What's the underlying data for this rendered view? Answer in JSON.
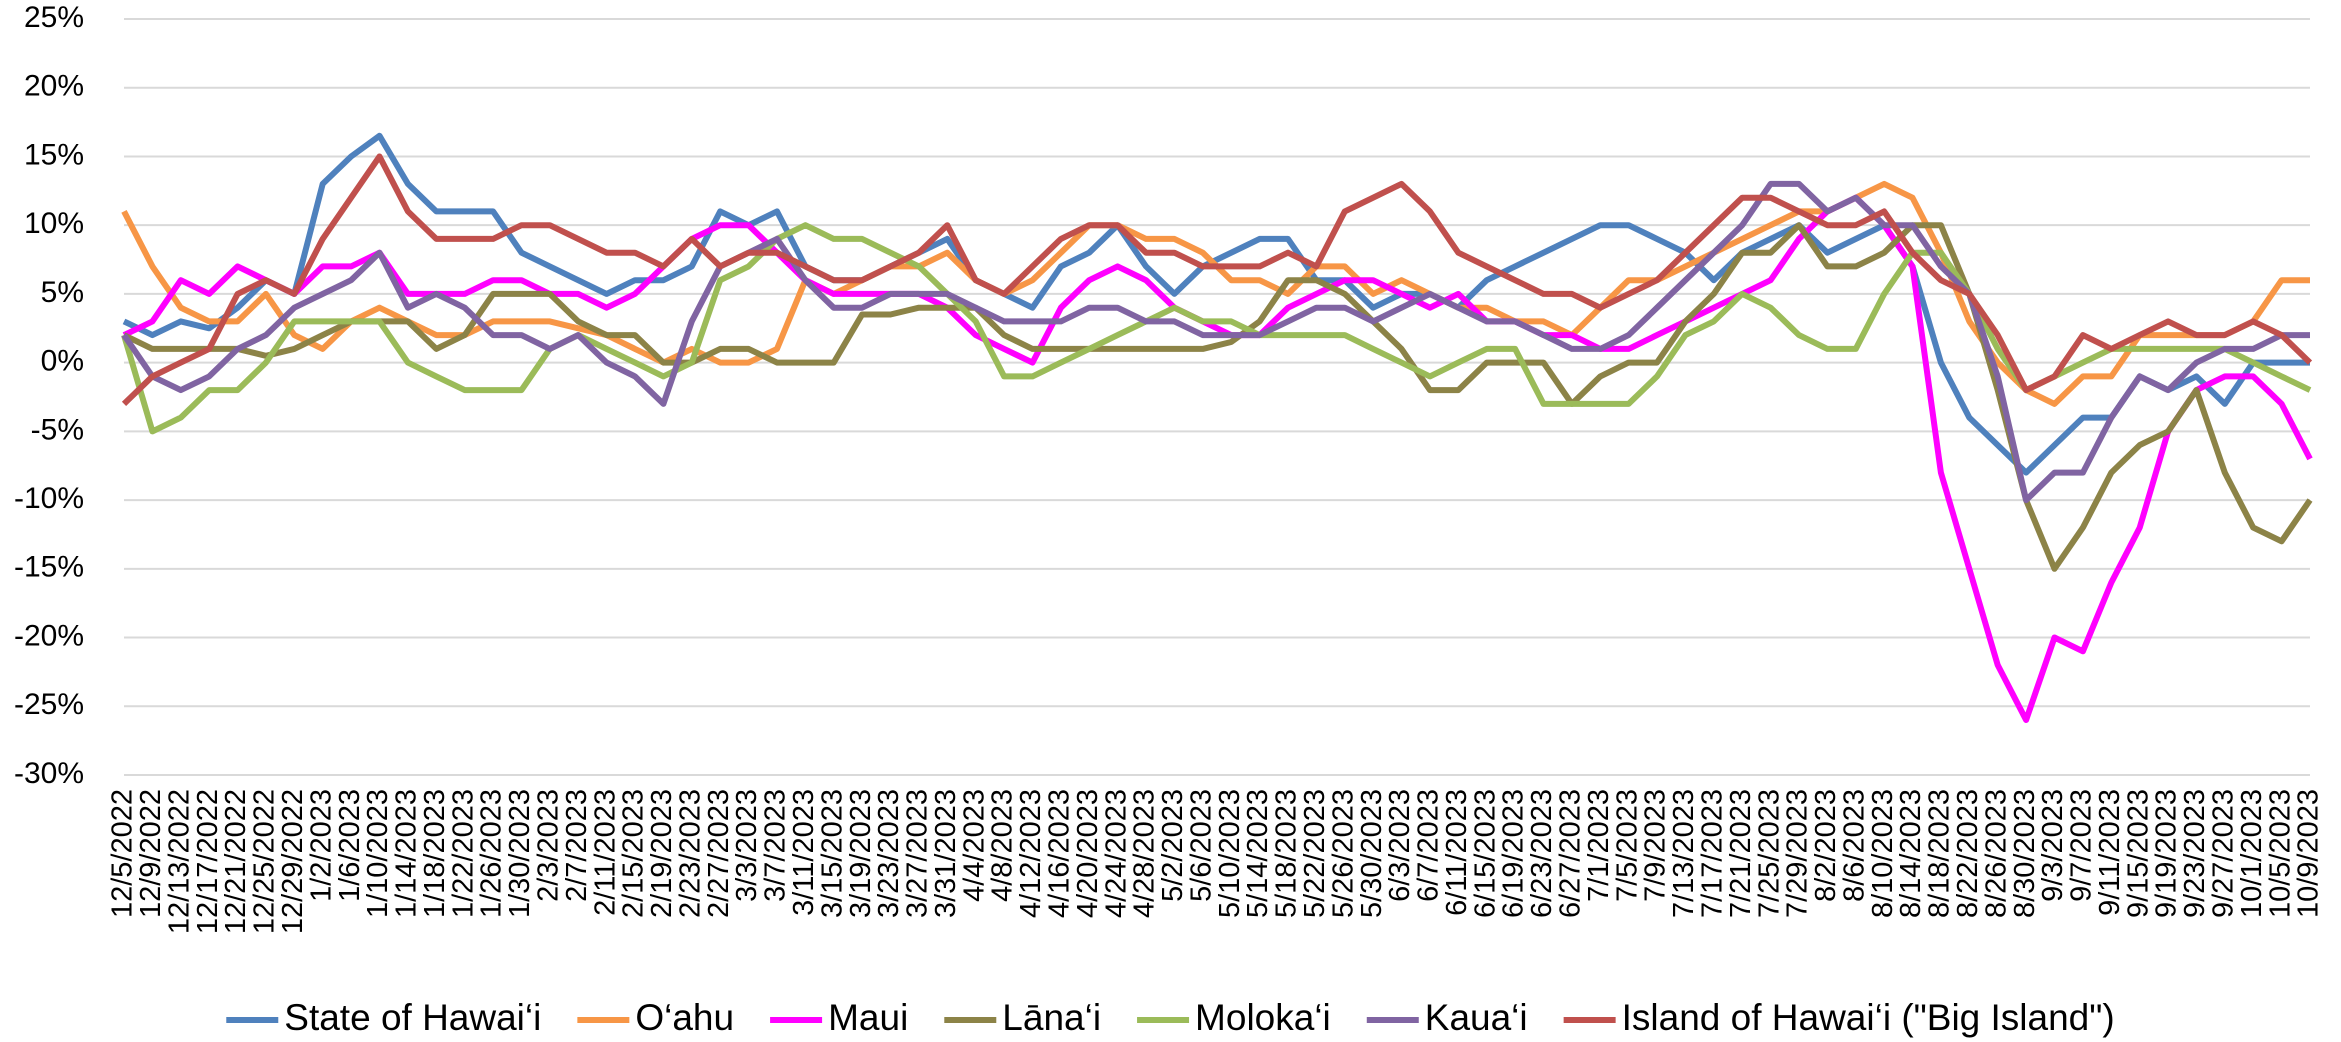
{
  "chart_data": {
    "type": "line",
    "categories": [
      "12/5/2022",
      "12/9/2022",
      "12/13/2022",
      "12/17/2022",
      "12/21/2022",
      "12/25/2022",
      "12/29/2022",
      "1/2/2023",
      "1/6/2023",
      "1/10/2023",
      "1/14/2023",
      "1/18/2023",
      "1/22/2023",
      "1/26/2023",
      "1/30/2023",
      "2/3/2023",
      "2/7/2023",
      "2/11/2023",
      "2/15/2023",
      "2/19/2023",
      "2/23/2023",
      "2/27/2023",
      "3/3/2023",
      "3/7/2023",
      "3/11/2023",
      "3/15/2023",
      "3/19/2023",
      "3/23/2023",
      "3/27/2023",
      "3/31/2023",
      "4/4/2023",
      "4/8/2023",
      "4/12/2023",
      "4/16/2023",
      "4/20/2023",
      "4/24/2023",
      "4/28/2023",
      "5/2/2023",
      "5/6/2023",
      "5/10/2023",
      "5/14/2023",
      "5/18/2023",
      "5/22/2023",
      "5/26/2023",
      "5/30/2023",
      "6/3/2023",
      "6/7/2023",
      "6/11/2023",
      "6/15/2023",
      "6/19/2023",
      "6/23/2023",
      "6/27/2023",
      "7/1/2023",
      "7/5/2023",
      "7/9/2023",
      "7/13/2023",
      "7/17/2023",
      "7/21/2023",
      "7/25/2023",
      "7/29/2023",
      "8/2/2023",
      "8/6/2023",
      "8/10/2023",
      "8/14/2023",
      "8/18/2023",
      "8/22/2023",
      "8/26/2023",
      "8/30/2023",
      "9/3/2023",
      "9/7/2023",
      "9/11/2023",
      "9/15/2023",
      "9/19/2023",
      "9/23/2023",
      "9/27/2023",
      "10/1/2023",
      "10/5/2023",
      "10/9/2023"
    ],
    "series": [
      {
        "name": "State of Hawai‘i",
        "color": "#4f81bd",
        "values": [
          3,
          2,
          3,
          2.5,
          4,
          6,
          5,
          13,
          15,
          16.5,
          13,
          11,
          11,
          11,
          8,
          7,
          6,
          5,
          6,
          6,
          7,
          11,
          10,
          11,
          7,
          6,
          6,
          7,
          8,
          9,
          6,
          5,
          4,
          7,
          8,
          10,
          7,
          5,
          7,
          8,
          9,
          9,
          6,
          6,
          4,
          5,
          5,
          4,
          6,
          7,
          8,
          9,
          10,
          10,
          9,
          8,
          6,
          8,
          9,
          10,
          8,
          9,
          10,
          7,
          0,
          -4,
          -6,
          -8,
          -6,
          -4,
          -4,
          -1,
          -2,
          -1,
          -3,
          0,
          0,
          0
        ]
      },
      {
        "name": "O‘ahu",
        "color": "#f79646",
        "values": [
          11,
          7,
          4,
          3,
          3,
          5,
          2,
          1,
          3,
          4,
          3,
          2,
          2,
          3,
          3,
          3,
          2.5,
          2,
          1,
          0,
          1,
          0,
          0,
          1,
          6,
          5,
          6,
          7,
          7,
          8,
          6,
          5,
          6,
          8,
          10,
          10,
          9,
          9,
          8,
          6,
          6,
          5,
          7,
          7,
          5,
          6,
          5,
          4,
          4,
          3,
          3,
          2,
          4,
          6,
          6,
          7,
          8,
          9,
          10,
          11,
          11,
          12,
          13,
          12,
          8,
          3,
          0,
          -2,
          -3,
          -1,
          -1,
          2,
          2,
          2,
          2,
          3,
          6,
          6
        ]
      },
      {
        "name": "Maui",
        "color": "#ff00ff",
        "values": [
          2,
          3,
          6,
          5,
          7,
          6,
          5,
          7,
          7,
          8,
          5,
          5,
          5,
          6,
          6,
          5,
          5,
          4,
          5,
          7,
          9,
          10,
          10,
          8,
          6,
          5,
          5,
          5,
          5,
          4,
          2,
          1,
          0,
          4,
          6,
          7,
          6,
          4,
          3,
          2,
          2,
          4,
          5,
          6,
          6,
          5,
          4,
          5,
          3,
          3,
          2,
          2,
          1,
          1,
          2,
          3,
          4,
          5,
          6,
          9,
          11,
          12,
          10,
          7,
          -8,
          -15,
          -22,
          -26,
          -20,
          -21,
          -16,
          -12,
          -5,
          -2,
          -1,
          -1,
          -3,
          -7
        ]
      },
      {
        "name": "Lāna‘i",
        "color": "#8c8347",
        "values": [
          2,
          1,
          1,
          1,
          1,
          0.5,
          1,
          2,
          3,
          3,
          3,
          1,
          2,
          5,
          5,
          5,
          3,
          2,
          2,
          0,
          0,
          1,
          1,
          0,
          0,
          0,
          3.5,
          3.5,
          4,
          4,
          4,
          2,
          1,
          1,
          1,
          1,
          1,
          1,
          1,
          1.5,
          3,
          6,
          6,
          5,
          3,
          1,
          -2,
          -2,
          0,
          0,
          0,
          -3,
          -1,
          0,
          0,
          3,
          5,
          8,
          8,
          10,
          7,
          7,
          8,
          10,
          10,
          5,
          -2,
          -10,
          -15,
          -12,
          -8,
          -6,
          -5,
          -2,
          -8,
          -12,
          -13,
          -10
        ]
      },
      {
        "name": "Moloka‘i",
        "color": "#9bbb59",
        "values": [
          2,
          -5,
          -4,
          -2,
          -2,
          0,
          3,
          3,
          3,
          3,
          0,
          -1,
          -2,
          -2,
          -2,
          1,
          2,
          1,
          0,
          -1,
          0,
          6,
          7,
          9,
          10,
          9,
          9,
          8,
          7,
          5,
          3,
          -1,
          -1,
          0,
          1,
          2,
          3,
          4,
          3,
          3,
          2,
          2,
          2,
          2,
          1,
          0,
          -1,
          0,
          1,
          1,
          -3,
          -3,
          -3,
          -3,
          -1,
          2,
          3,
          5,
          4,
          2,
          1,
          1,
          5,
          8,
          8,
          5,
          1,
          -2,
          -1,
          0,
          1,
          1,
          1,
          1,
          1,
          0,
          -1,
          -2
        ]
      },
      {
        "name": "Kaua‘i",
        "color": "#8064a2",
        "values": [
          2,
          -1,
          -2,
          -1,
          1,
          2,
          4,
          5,
          6,
          8,
          4,
          5,
          4,
          2,
          2,
          1,
          2,
          0,
          -1,
          -3,
          3,
          7,
          8,
          9,
          6,
          4,
          4,
          5,
          5,
          5,
          4,
          3,
          3,
          3,
          4,
          4,
          3,
          3,
          2,
          2,
          2,
          3,
          4,
          4,
          3,
          4,
          5,
          4,
          3,
          3,
          2,
          1,
          1,
          2,
          4,
          6,
          8,
          10,
          13,
          13,
          11,
          12,
          10,
          10,
          7,
          5,
          -1,
          -10,
          -8,
          -8,
          -4,
          -1,
          -2,
          0,
          1,
          1,
          2,
          2
        ]
      },
      {
        "name": "Island of Hawai‘i (\"Big Island\")",
        "color": "#c0504d",
        "values": [
          -3,
          -1,
          0,
          1,
          5,
          6,
          5,
          9,
          12,
          15,
          11,
          9,
          9,
          9,
          10,
          10,
          9,
          8,
          8,
          7,
          9,
          7,
          8,
          8,
          7,
          6,
          6,
          7,
          8,
          10,
          6,
          5,
          7,
          9,
          10,
          10,
          8,
          8,
          7,
          7,
          7,
          8,
          7,
          11,
          12,
          13,
          11,
          8,
          7,
          6,
          5,
          5,
          4,
          5,
          6,
          8,
          10,
          12,
          12,
          11,
          10,
          10,
          11,
          8,
          6,
          5,
          2,
          -2,
          -1,
          2,
          1,
          2,
          3,
          2,
          2,
          3,
          2,
          0
        ]
      }
    ],
    "ylim": [
      -30,
      25
    ],
    "yticks": [
      {
        "value": -30,
        "label": "-30%"
      },
      {
        "value": -25,
        "label": "-25%"
      },
      {
        "value": -20,
        "label": "-20%"
      },
      {
        "value": -15,
        "label": "-15%"
      },
      {
        "value": -10,
        "label": "-10%"
      },
      {
        "value": -5,
        "label": "-5%"
      },
      {
        "value": 0,
        "label": "0%"
      },
      {
        "value": 5,
        "label": "5%"
      },
      {
        "value": 10,
        "label": "10%"
      },
      {
        "value": 15,
        "label": "15%"
      },
      {
        "value": 20,
        "label": "20%"
      },
      {
        "value": 25,
        "label": "25%"
      }
    ],
    "grid": true,
    "legend": "bottom"
  }
}
